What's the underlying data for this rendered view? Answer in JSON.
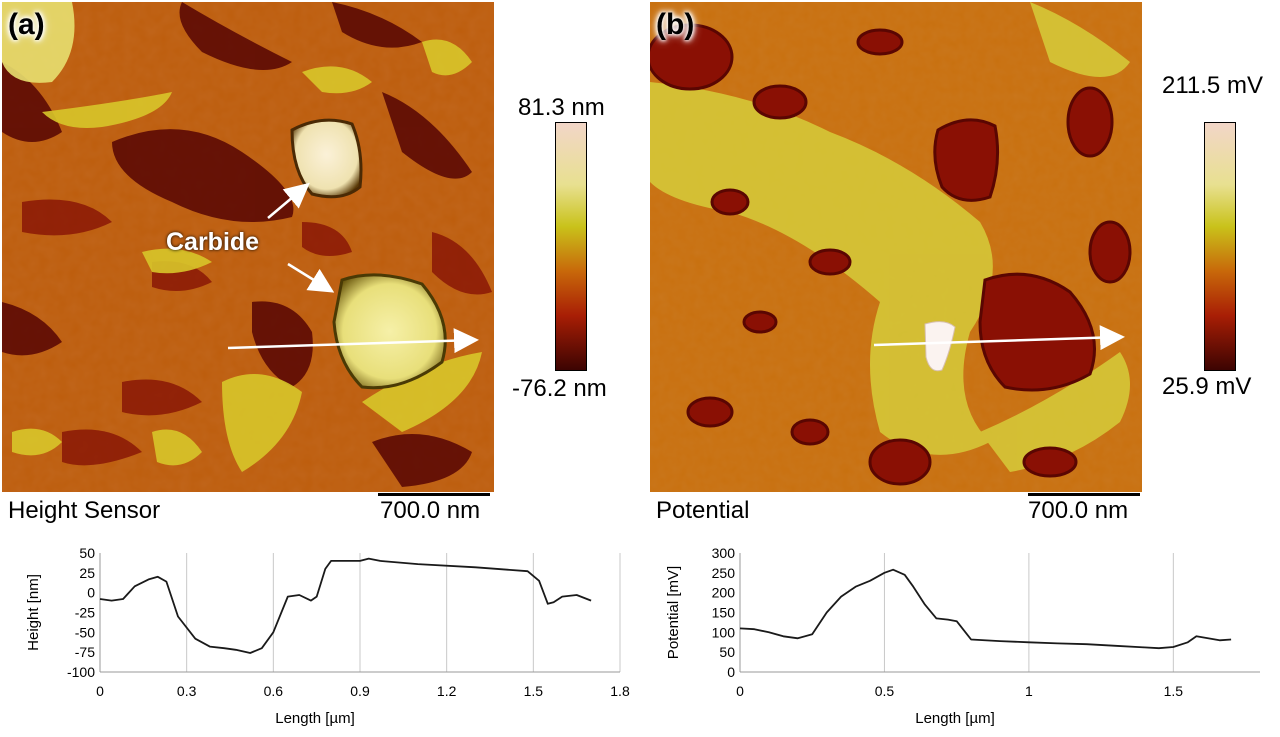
{
  "panel_a": {
    "letter": "(a)",
    "annotation": "Carbide",
    "caption": "Height Sensor",
    "scale_label": "700.0 nm",
    "colorbar": {
      "max": "81.3 nm",
      "min": "-76.2 nm"
    }
  },
  "panel_b": {
    "letter": "(b)",
    "caption": "Potential",
    "scale_label": "700.0 nm",
    "colorbar": {
      "max": "211.5 mV",
      "min": "25.9 mV"
    }
  },
  "colors": {
    "line": "#1a1a1a",
    "grid": "#c8c8c8",
    "colorbar": [
      "#f2d6c8",
      "#e8e090",
      "#c9c21a",
      "#c8680a",
      "#a81e05",
      "#3c0402"
    ]
  },
  "chart_data": [
    {
      "type": "line",
      "xlabel": "Length [µm]",
      "ylabel": "Height [nm]",
      "xlim": [
        0,
        1.8
      ],
      "ylim": [
        -100,
        50
      ],
      "xticks": [
        0,
        0.3,
        0.6,
        0.9,
        1.2,
        1.5,
        1.8
      ],
      "xtick_labels": [
        "0",
        "0.3",
        "0.6",
        "0.9",
        "1.2",
        "1.5",
        "1.8"
      ],
      "yticks": [
        50,
        25,
        0,
        -25,
        -50,
        -75,
        -100
      ],
      "ytick_labels": [
        "50",
        "25",
        "0",
        "-25",
        "-50",
        "-75",
        "-100"
      ],
      "grid": "vertical",
      "series": [
        {
          "x": [
            0,
            0.04,
            0.08,
            0.12,
            0.17,
            0.2,
            0.23,
            0.27,
            0.33,
            0.38,
            0.43,
            0.47,
            0.52,
            0.56,
            0.6,
            0.65,
            0.69,
            0.73,
            0.75,
            0.78,
            0.8,
            0.85,
            0.9,
            0.93,
            0.97,
            1.1,
            1.3,
            1.48,
            1.52,
            1.55,
            1.57,
            1.6,
            1.65,
            1.7
          ],
          "y": [
            -8,
            -10,
            -8,
            8,
            17,
            20,
            14,
            -30,
            -58,
            -68,
            -70,
            -72,
            -76,
            -70,
            -50,
            -5,
            -3,
            -10,
            -5,
            30,
            40,
            40,
            40,
            43,
            40,
            36,
            32,
            27,
            15,
            -14,
            -12,
            -5,
            -3,
            -10
          ]
        }
      ]
    },
    {
      "type": "line",
      "xlabel": "Length [µm]",
      "ylabel": "Potential [mV]",
      "xlim": [
        0,
        1.8
      ],
      "ylim": [
        0,
        300
      ],
      "xticks": [
        0,
        0.5,
        1,
        1.5
      ],
      "xtick_labels": [
        "0",
        "0.5",
        "1",
        "1.5"
      ],
      "yticks": [
        300,
        250,
        200,
        150,
        100,
        50,
        0
      ],
      "ytick_labels": [
        "300",
        "250",
        "200",
        "150",
        "100",
        "50",
        "0"
      ],
      "grid": "vertical",
      "series": [
        {
          "x": [
            0,
            0.05,
            0.1,
            0.15,
            0.2,
            0.25,
            0.3,
            0.35,
            0.4,
            0.45,
            0.5,
            0.53,
            0.57,
            0.6,
            0.64,
            0.68,
            0.72,
            0.75,
            0.8,
            0.9,
            1,
            1.1,
            1.2,
            1.3,
            1.4,
            1.45,
            1.5,
            1.55,
            1.58,
            1.62,
            1.66,
            1.7
          ],
          "y": [
            110,
            108,
            100,
            90,
            85,
            95,
            150,
            190,
            215,
            230,
            250,
            258,
            245,
            215,
            170,
            135,
            132,
            128,
            82,
            78,
            75,
            72,
            70,
            66,
            62,
            60,
            63,
            75,
            90,
            85,
            80,
            82
          ]
        }
      ]
    }
  ]
}
